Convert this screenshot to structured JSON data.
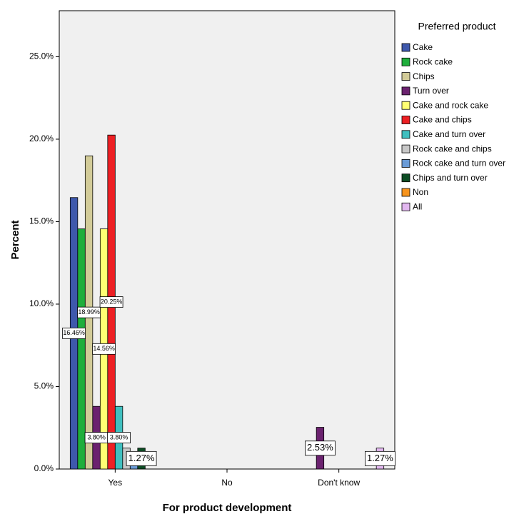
{
  "chart_data": {
    "type": "bar",
    "ylabel": "Percent",
    "xlabel": "For product development",
    "legend_title": "Preferred product",
    "categories": [
      "Yes",
      "No",
      "Don't know"
    ],
    "ylim": [
      0,
      27.79
    ],
    "yticks": [
      {
        "value": 0,
        "label": "0.0%"
      },
      {
        "value": 5,
        "label": "5.0%"
      },
      {
        "value": 10,
        "label": "10.0%"
      },
      {
        "value": 15,
        "label": "15.0%"
      },
      {
        "value": 20,
        "label": "20.0%"
      },
      {
        "value": 25,
        "label": "25.0%"
      }
    ],
    "series": [
      {
        "name": "Cake",
        "color": "#3e58ac",
        "values": [
          16.46,
          0,
          0
        ],
        "value_labels": [
          "16.46%",
          null,
          null
        ]
      },
      {
        "name": "Rock cake",
        "color": "#1fae3c",
        "values": [
          14.56,
          0,
          0
        ]
      },
      {
        "name": "Chips",
        "color": "#d2cb98",
        "values": [
          18.99,
          0,
          0
        ],
        "value_labels": [
          "18.99%",
          null,
          null
        ]
      },
      {
        "name": "Turn over",
        "color": "#6b226f",
        "values": [
          3.8,
          0,
          2.53
        ],
        "value_labels": [
          "3.80%",
          null,
          "2.53%"
        ]
      },
      {
        "name": "Cake and rock cake",
        "color": "#ffff73",
        "values": [
          14.56,
          0,
          0
        ],
        "value_labels": [
          "14.56%",
          null,
          null
        ]
      },
      {
        "name": "Cake and chips",
        "color": "#ed2024",
        "values": [
          20.25,
          0,
          0
        ],
        "value_labels": [
          "20.25%",
          null,
          null
        ]
      },
      {
        "name": "Cake and turn over",
        "color": "#40bfbf",
        "values": [
          3.8,
          0,
          0
        ],
        "value_labels": [
          "3.80%",
          null,
          null
        ]
      },
      {
        "name": "Rock cake and chips",
        "color": "#c8c8c8",
        "values": [
          1.27,
          0,
          0
        ]
      },
      {
        "name": "Rock cake and turn over",
        "color": "#6a9bd6",
        "values": [
          0.63,
          0,
          0
        ]
      },
      {
        "name": "Chips and turn over",
        "color": "#0d4d24",
        "values": [
          1.27,
          0,
          0
        ],
        "value_labels": [
          "1.27%",
          null,
          null
        ]
      },
      {
        "name": "Non",
        "color": "#f7941d",
        "values": [
          0,
          0,
          0
        ]
      },
      {
        "name": "All",
        "color": "#e2b7f0",
        "values": [
          0,
          0,
          1.27
        ],
        "value_labels": [
          null,
          null,
          "1.27%"
        ]
      }
    ]
  }
}
